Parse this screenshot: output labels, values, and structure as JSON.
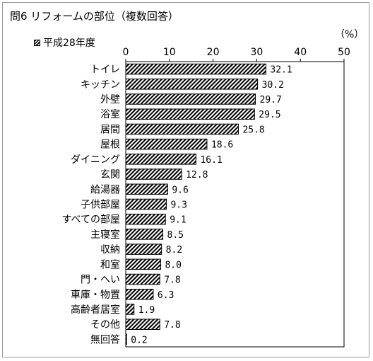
{
  "chart_data": {
    "type": "bar",
    "orientation": "horizontal",
    "title": "問6 リフォームの部位（複数回答）",
    "unit": "（%）",
    "series": [
      {
        "name": "平成28年度",
        "pattern": "diagonal-hatch"
      }
    ],
    "xlim": [
      0,
      50
    ],
    "x_ticks": [
      "0",
      "10",
      "20",
      "30",
      "40",
      "50"
    ],
    "grid": false,
    "legend": "top-left",
    "categories": [
      "トイレ",
      "キッチン",
      "外壁",
      "浴室",
      "居間",
      "屋根",
      "ダイニング",
      "玄関",
      "給湯器",
      "子供部屋",
      "すべての部屋",
      "主寝室",
      "収納",
      "和室",
      "門・へい",
      "車庫・物置",
      "高齢者居室",
      "その他",
      "無回答"
    ],
    "values": [
      32.1,
      30.2,
      29.7,
      29.5,
      25.8,
      18.6,
      16.1,
      12.8,
      9.6,
      9.3,
      9.1,
      8.5,
      8.2,
      8.0,
      7.8,
      6.3,
      1.9,
      7.8,
      0.2
    ],
    "labels": [
      "32.1",
      "30.2",
      "29.7",
      "29.5",
      "25.8",
      "18.6",
      "16.1",
      "12.8",
      "9.6",
      "9.3",
      "9.1",
      "8.5",
      "8.2",
      "8.0",
      "7.8",
      "6.3",
      "1.9",
      "7.8",
      "0.2"
    ]
  }
}
